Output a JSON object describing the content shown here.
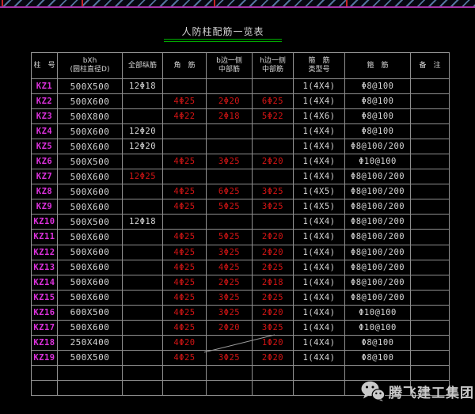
{
  "title": "人防柱配筋一览表",
  "watermark": {
    "icon": "wechat-icon",
    "label": "腾飞建工集团"
  },
  "colors": {
    "rebar_red": "#d21414",
    "label_magenta": "#dc30dc",
    "underline_green": "#00a800",
    "hatch_blue": "#54749e",
    "band_magenta": "#a832a8",
    "tick_red": "#c62626"
  },
  "table": {
    "headers": [
      {
        "key": "no",
        "lines": [
          "柱　号"
        ]
      },
      {
        "key": "bxh",
        "lines": [
          "bXh",
          "(圆柱直径D)"
        ]
      },
      {
        "key": "all",
        "lines": [
          "全部纵筋"
        ]
      },
      {
        "key": "corner",
        "lines": [
          "角　筋"
        ]
      },
      {
        "key": "b",
        "lines": [
          "b边一侧",
          "中部筋"
        ]
      },
      {
        "key": "h",
        "lines": [
          "h边一侧",
          "中部筋"
        ]
      },
      {
        "key": "type",
        "lines": [
          "箍　筋",
          "类型号"
        ]
      },
      {
        "key": "stirrup",
        "lines": [
          "箍　筋"
        ]
      },
      {
        "key": "remark",
        "lines": [
          "备　注"
        ]
      }
    ],
    "rows": [
      {
        "no": "KZ1",
        "bxh": "500X500",
        "all": "12Φ18",
        "corner": "",
        "b": "",
        "h": "",
        "type": "1(4X4)",
        "stirrup": "Φ8@100",
        "remark": ""
      },
      {
        "no": "KZ2",
        "bxh": "500X600",
        "all": "",
        "corner": "4Φ25",
        "b": "2Φ20",
        "h": "6Φ25",
        "type": "1(4X4)",
        "stirrup": "Φ8@100",
        "remark": ""
      },
      {
        "no": "KZ3",
        "bxh": "500X800",
        "all": "",
        "corner": "4Φ22",
        "b": "2Φ18",
        "h": "5Φ22",
        "type": "1(4X6)",
        "stirrup": "Φ8@100",
        "remark": ""
      },
      {
        "no": "KZ4",
        "bxh": "500X600",
        "all": "12Φ20",
        "corner": "",
        "b": "",
        "h": "",
        "type": "1(4X4)",
        "stirrup": "Φ8@100",
        "remark": ""
      },
      {
        "no": "KZ5",
        "bxh": "500X600",
        "all": "12Φ20",
        "corner": "",
        "b": "",
        "h": "",
        "type": "1(4X4)",
        "stirrup": "Φ8@100/200",
        "remark": ""
      },
      {
        "no": "KZ6",
        "bxh": "500X500",
        "all": "",
        "corner": "4Φ25",
        "b": "3Φ25",
        "h": "2Φ20",
        "type": "1(4X4)",
        "stirrup": "Φ10@100",
        "remark": ""
      },
      {
        "no": "KZ7",
        "bxh": "500X600",
        "all": "12Φ25",
        "allRed": true,
        "corner": "",
        "b": "",
        "h": "",
        "type": "1(4X4)",
        "stirrup": "Φ8@100/200",
        "remark": ""
      },
      {
        "no": "KZ8",
        "bxh": "500X600",
        "all": "",
        "corner": "4Φ25",
        "b": "6Φ25",
        "h": "3Φ25",
        "type": "1(4X5)",
        "stirrup": "Φ8@100/200",
        "remark": ""
      },
      {
        "no": "KZ9",
        "bxh": "500X600",
        "all": "",
        "corner": "4Φ25",
        "b": "5Φ25",
        "h": "3Φ25",
        "type": "1(4X5)",
        "stirrup": "Φ8@100/200",
        "remark": ""
      },
      {
        "no": "KZ10",
        "bxh": "500X500",
        "all": "12Φ18",
        "corner": "",
        "b": "",
        "h": "",
        "type": "1(4X4)",
        "stirrup": "Φ8@100/200",
        "remark": ""
      },
      {
        "no": "KZ11",
        "bxh": "500X600",
        "all": "",
        "corner": "4Φ25",
        "b": "5Φ25",
        "h": "2Φ20",
        "type": "1(4X4)",
        "stirrup": "Φ8@100/200",
        "remark": ""
      },
      {
        "no": "KZ12",
        "bxh": "500X600",
        "all": "",
        "corner": "4Φ25",
        "b": "3Φ25",
        "h": "2Φ20",
        "type": "1(4X4)",
        "stirrup": "Φ8@100/200",
        "remark": ""
      },
      {
        "no": "KZ13",
        "bxh": "500X600",
        "all": "",
        "corner": "4Φ25",
        "b": "4Φ25",
        "h": "2Φ25",
        "type": "1(4X4)",
        "stirrup": "Φ8@100/200",
        "remark": ""
      },
      {
        "no": "KZ14",
        "bxh": "500X600",
        "all": "",
        "corner": "4Φ25",
        "b": "2Φ25",
        "h": "2Φ18",
        "type": "1(4X4)",
        "stirrup": "Φ8@100/200",
        "remark": ""
      },
      {
        "no": "KZ15",
        "bxh": "500X600",
        "all": "",
        "corner": "4Φ25",
        "b": "3Φ25",
        "h": "2Φ25",
        "type": "1(4X4)",
        "stirrup": "Φ8@100/200",
        "remark": ""
      },
      {
        "no": "KZ16",
        "bxh": "600X500",
        "all": "",
        "corner": "4Φ25",
        "b": "3Φ25",
        "h": "2Φ20",
        "type": "1(4X4)",
        "stirrup": "Φ10@100",
        "remark": ""
      },
      {
        "no": "KZ17",
        "bxh": "500X600",
        "all": "",
        "corner": "4Φ25",
        "b": "2Φ20",
        "h": "3Φ25",
        "type": "1(4X4)",
        "stirrup": "Φ10@100",
        "remark": ""
      },
      {
        "no": "KZ18",
        "bxh": "250X400",
        "all": "",
        "corner": "4Φ20",
        "b": "",
        "bSlash": true,
        "h": "1Φ20",
        "type": "1(4X4)",
        "stirrup": "Φ8@100",
        "remark": ""
      },
      {
        "no": "KZ19",
        "bxh": "500X500",
        "all": "",
        "corner": "4Φ25",
        "b": "3Φ25",
        "h": "2Φ20",
        "type": "1(4X4)",
        "stirrup": "Φ8@100",
        "remark": ""
      },
      {
        "no": "",
        "bxh": "",
        "all": "",
        "corner": "",
        "b": "",
        "h": "",
        "type": "",
        "stirrup": "",
        "remark": ""
      },
      {
        "no": "",
        "bxh": "",
        "all": "",
        "corner": "",
        "b": "",
        "h": "",
        "type": "",
        "stirrup": "",
        "remark": ""
      }
    ]
  }
}
